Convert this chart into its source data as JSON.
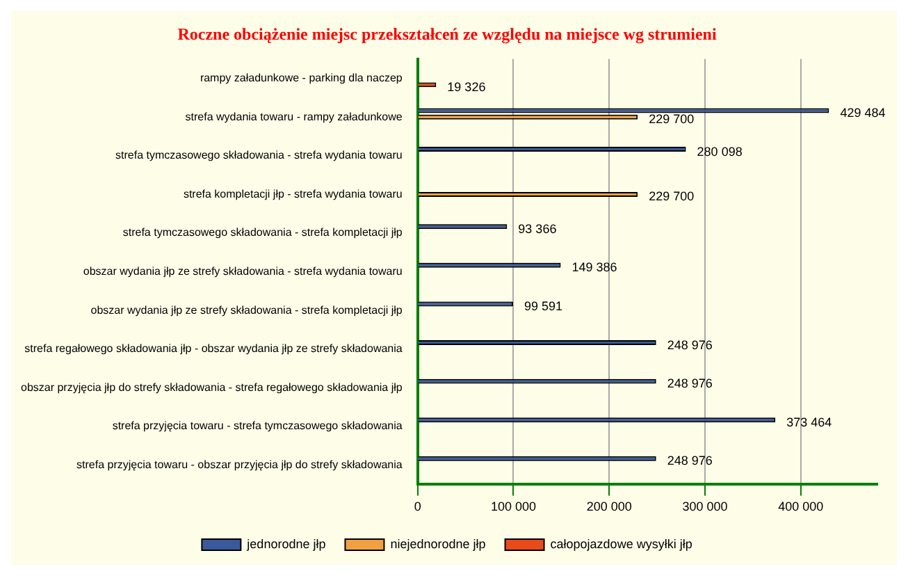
{
  "chart_data": {
    "type": "bar",
    "orientation": "horizontal",
    "title": "Roczne obciążenie miejsc przekształceń ze względu na miejsce wg strumieni",
    "categories": [
      "rampy załadunkowe - parking dla naczep",
      "strefa wydania towaru - rampy załadunkowe",
      "strefa tymczasowego składowania - strefa wydania towaru",
      "strefa kompletacji jłp - strefa wydania towaru",
      "strefa tymczasowego składowania - strefa kompletacji jłp",
      "obszar wydania jłp ze strefy składowania - strefa wydania towaru",
      "obszar wydania jłp ze strefy składowania - strefa kompletacji jłp",
      "strefa regałowego składowania jłp - obszar wydania jłp ze strefy składowania",
      "obszar przyjęcia jłp do strefy składowania - strefa regałowego składowania jłp",
      "strefa przyjęcia towaru - strefa tymczasowego składowania",
      "strefa przyjęcia towaru - obszar przyjęcia jłp do strefy składowania"
    ],
    "series": [
      {
        "name": "jednorodne jłp",
        "color": "#3a5a9c",
        "values": [
          null,
          429484,
          280098,
          null,
          93366,
          149386,
          99591,
          248976,
          248976,
          373464,
          248976
        ],
        "value_labels": [
          null,
          "429 484",
          "280 098",
          null,
          "93 366",
          "149 386",
          "99 591",
          "248 976",
          "248 976",
          "373 464",
          "248 976"
        ]
      },
      {
        "name": "niejednorodne jłp",
        "color": "#f0a040",
        "values": [
          null,
          229700,
          null,
          229700,
          null,
          null,
          null,
          null,
          null,
          null,
          null
        ],
        "value_labels": [
          null,
          "229 700",
          null,
          "229 700",
          null,
          null,
          null,
          null,
          null,
          null,
          null
        ]
      },
      {
        "name": "całopojazdowe wysyłki jłp",
        "color": "#e84a1a",
        "values": [
          19326,
          null,
          null,
          null,
          null,
          null,
          null,
          null,
          null,
          null,
          null
        ],
        "value_labels": [
          "19 326",
          null,
          null,
          null,
          null,
          null,
          null,
          null,
          null,
          null,
          null
        ]
      }
    ],
    "xlim": [
      0,
      480000
    ],
    "xticks": [
      {
        "value": 0,
        "label": "0"
      },
      {
        "value": 100000,
        "label": "100 000"
      },
      {
        "value": 200000,
        "label": "200 000"
      },
      {
        "value": 300000,
        "label": "300 000"
      },
      {
        "value": 400000,
        "label": "400 000"
      }
    ],
    "grid": "x",
    "legend": "bottom"
  }
}
